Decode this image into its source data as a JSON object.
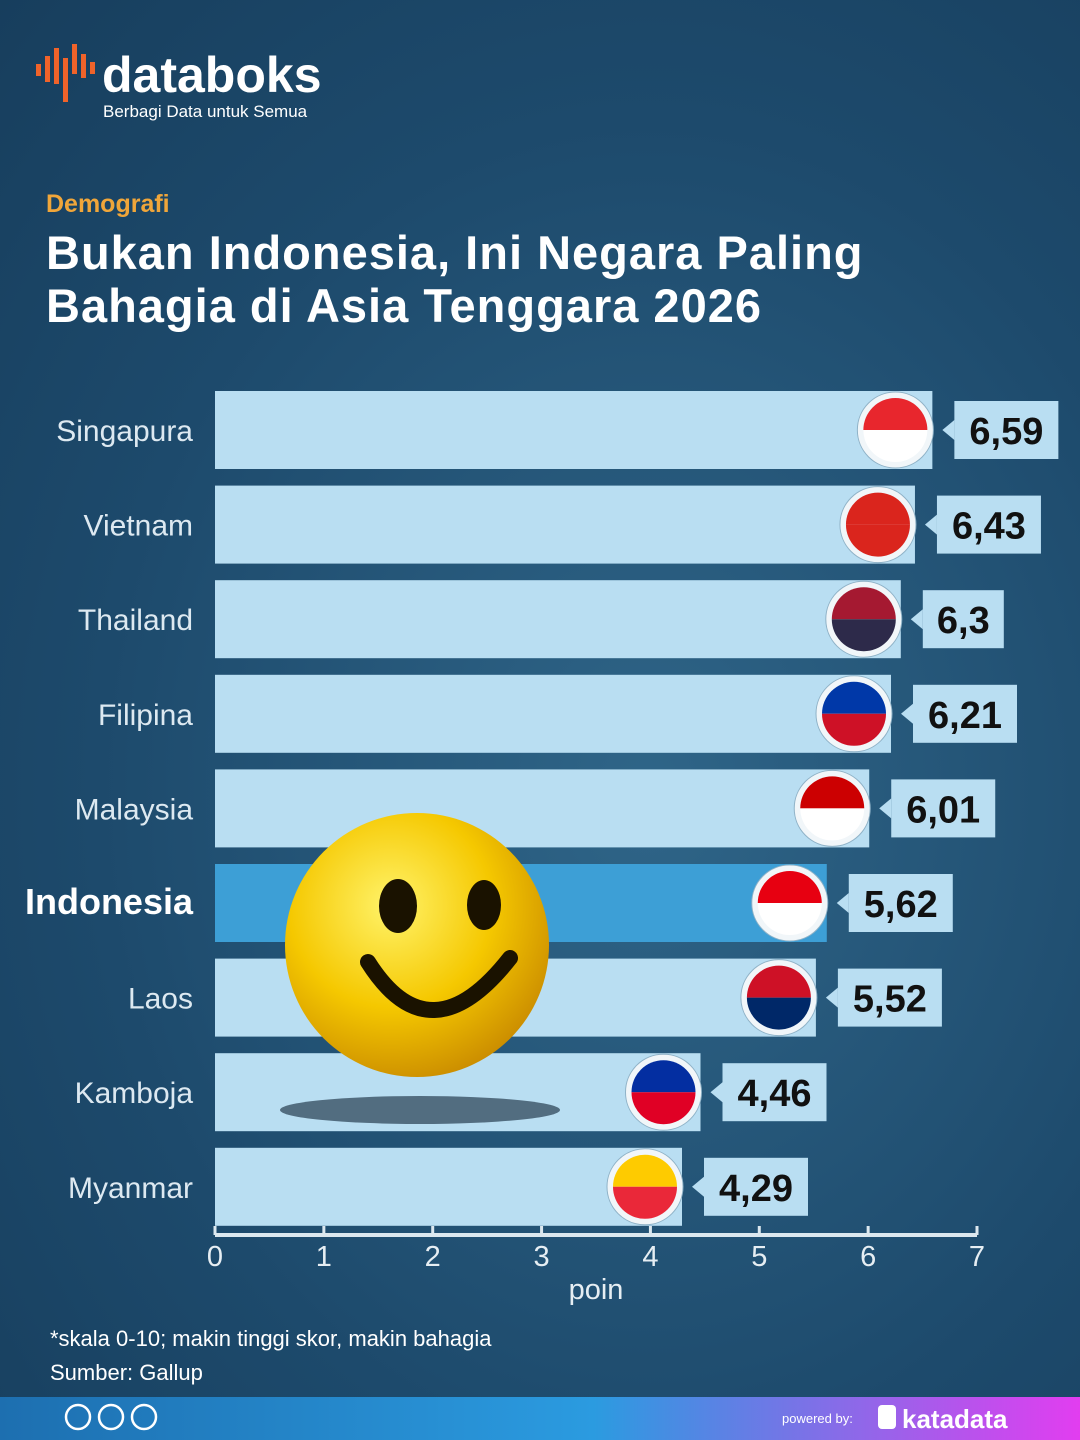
{
  "header": {
    "logo": "databoks",
    "tagline": "Berbagi Data untuk Semua",
    "category": "Demografi"
  },
  "chart_data": {
    "type": "hbar",
    "title": "Bukan Indonesia, Ini Negara Paling\nBahagia di Asia Tenggara 2026",
    "categories": [
      "Singapura",
      "Vietnam",
      "Thailand",
      "Filipina",
      "Malaysia",
      "Indonesia",
      "Laos",
      "Kamboja",
      "Myanmar"
    ],
    "values": [
      6.59,
      6.43,
      6.3,
      6.21,
      6.01,
      5.62,
      5.52,
      4.46,
      4.29
    ],
    "value_labels": [
      "6,59",
      "6,43",
      "6,3",
      "6,21",
      "6,01",
      "5,62",
      "5,52",
      "4,46",
      "4,29"
    ],
    "colors": [
      "#b9def2",
      "#b9def2",
      "#b9def2",
      "#b9def2",
      "#b9def2",
      "#3d9fd6",
      "#b9def2",
      "#b9def2",
      "#b9def2"
    ],
    "highlight_color": "#3d9fd6",
    "xlim": [
      0,
      7
    ],
    "xticks": [
      0,
      1,
      2,
      3,
      4,
      5,
      6,
      7
    ],
    "xlabel": "poin",
    "note": "*skala 0-10; makin tinggi skor, makin bahagia",
    "source": "Sumber: Gallup"
  },
  "footer": {
    "powered_by": "powered by:",
    "brand": "katadata"
  }
}
